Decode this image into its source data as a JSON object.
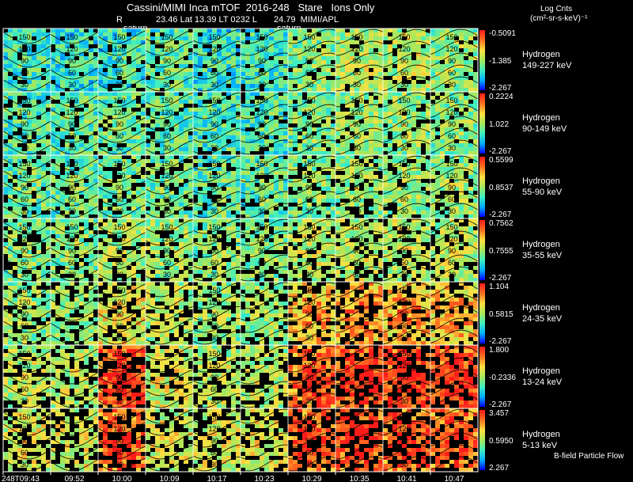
{
  "header": {
    "title": "Cassini/MIMI Inca mTOF  2016-248   Stare   Ions Only",
    "r_label": "R",
    "orbit_line": "23.46 Lat 13.39 LT 0232 L       24.79  MIMI/APL",
    "saturn_labels": [
      "saturn",
      "saturn"
    ]
  },
  "colorbar": {
    "title": "Log Cnts",
    "units": "(cm²-sr-s-keV)⁻¹"
  },
  "footer": {
    "flow_label": "B-field Particle Flow",
    "x_ticks": [
      "248T09:43",
      "09:52",
      "10:00",
      "10:09",
      "10:17",
      "10:23",
      "10:29",
      "10:35",
      "10:41",
      "10:47"
    ]
  },
  "colors": {
    "background": "#000000",
    "grid": "#ffffff",
    "contour": "#000000",
    "scale": [
      "#0000ff",
      "#00b0ff",
      "#3ff0c0",
      "#a8e85a",
      "#ffe040",
      "#ff7020",
      "#ff1a1a"
    ]
  },
  "chart_data": {
    "type": "heatmap",
    "x_ticks": [
      "248T09:43",
      "09:52",
      "10:00",
      "10:09",
      "10:17",
      "10:23",
      "10:29",
      "10:35",
      "10:41",
      "10:47"
    ],
    "pitch_angle_contours": [
      150,
      120,
      90,
      60,
      30
    ],
    "panels": [
      {
        "species": "Hydrogen",
        "energy": "149-227 keV",
        "cb_max": "-0.5091",
        "cb_mid": "-1.385",
        "cb_min": "-2.267",
        "level": [
          0.3,
          0.28,
          0.3,
          0.35,
          0.28,
          0.3,
          0.42,
          0.5,
          0.5,
          0.45
        ]
      },
      {
        "species": "Hydrogen",
        "energy": "90-149 keV",
        "cb_max": "0.2224",
        "cb_mid": "1.022",
        "cb_min": "-2.267",
        "level": [
          0.35,
          0.35,
          0.38,
          0.35,
          0.32,
          0.32,
          0.4,
          0.45,
          0.45,
          0.42
        ]
      },
      {
        "species": "Hydrogen",
        "energy": "55-90 keV",
        "cb_max": "0.5599",
        "cb_mid": "0.8537",
        "cb_min": "-2.267",
        "level": [
          0.38,
          0.38,
          0.4,
          0.38,
          0.36,
          0.36,
          0.42,
          0.45,
          0.45,
          0.45
        ]
      },
      {
        "species": "Hydrogen",
        "energy": "35-55 keV",
        "cb_max": "0.7562",
        "cb_mid": "0.7555",
        "cb_min": "-2.267",
        "level": [
          0.42,
          0.42,
          0.48,
          0.45,
          0.42,
          0.42,
          0.5,
          0.52,
          0.52,
          0.5
        ]
      },
      {
        "species": "Hydrogen",
        "energy": "24-35 keV",
        "cb_max": "1.104",
        "cb_mid": "0.5815",
        "cb_min": "-2.267",
        "level": [
          0.45,
          0.45,
          0.6,
          0.5,
          0.45,
          0.45,
          0.62,
          0.68,
          0.66,
          0.62
        ]
      },
      {
        "species": "Hydrogen",
        "energy": "13-24 keV",
        "cb_max": "1.800",
        "cb_mid": "-0.2336",
        "cb_min": "-2.267",
        "level": [
          0.5,
          0.5,
          0.85,
          0.55,
          0.5,
          0.5,
          0.78,
          0.85,
          0.85,
          0.82
        ]
      },
      {
        "species": "Hydrogen",
        "energy": "5-13 keV",
        "cb_max": "3.457",
        "cb_mid": "0.5950",
        "cb_min": "2.267",
        "level": [
          0.55,
          0.55,
          0.78,
          0.55,
          0.55,
          0.55,
          0.78,
          0.82,
          0.8,
          0.78
        ]
      }
    ]
  }
}
